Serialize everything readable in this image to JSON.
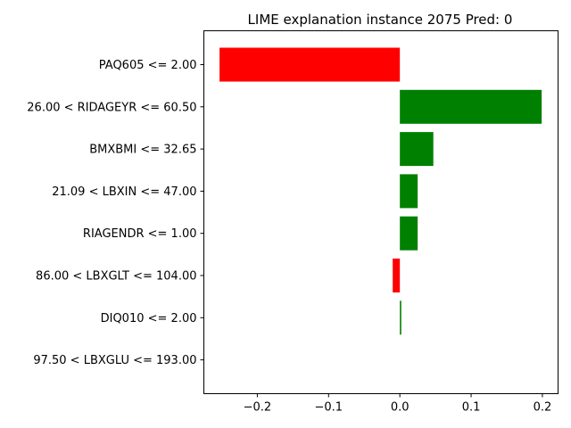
{
  "chart_data": {
    "type": "bar",
    "orientation": "horizontal",
    "title": "LIME explanation instance 2075 Pred: 0",
    "xlabel": "",
    "ylabel": "",
    "xlim": [
      -0.275,
      0.222
    ],
    "xticks": [
      -0.2,
      -0.1,
      0.0,
      0.1,
      0.2
    ],
    "xtick_labels": [
      "−0.2",
      "−0.1",
      "0.0",
      "0.1",
      "0.2"
    ],
    "grid": false,
    "positive_color": "#008000",
    "negative_color": "#ff0000",
    "categories": [
      "PAQ605 <= 2.00",
      "26.00 < RIDAGEYR <= 60.50",
      "BMXBMI <= 32.65",
      "21.09 < LBXIN <= 47.00",
      "RIAGENDR <= 1.00",
      "86.00 < LBXGLT <= 104.00",
      "DIQ010 <= 2.00",
      "97.50 < LBXGLU <= 193.00"
    ],
    "values": [
      -0.253,
      0.199,
      0.047,
      0.025,
      0.025,
      -0.01,
      0.002,
      0.0
    ]
  }
}
